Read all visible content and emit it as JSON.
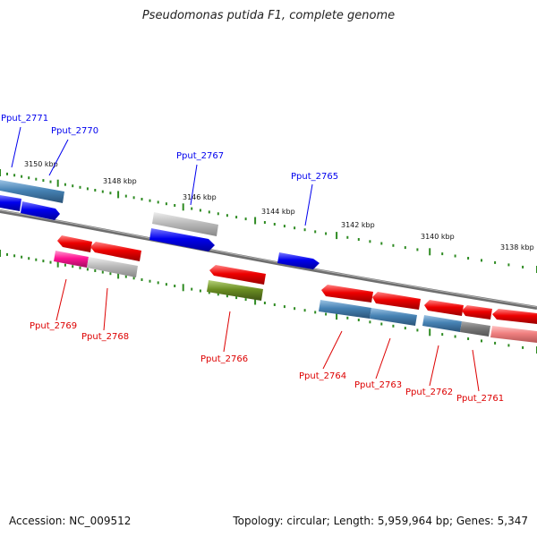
{
  "title": "Pseudomonas putida F1, complete genome",
  "footer": {
    "accession": "Accession: NC_009512",
    "summary": "Topology: circular; Length: 5,959,964 bp; Genes: 5,347"
  },
  "ruler": {
    "labels": [
      "3150 kbp",
      "3148 kbp",
      "3146 kbp",
      "3144 kbp",
      "3142 kbp",
      "3140 kbp",
      "3138 kbp"
    ]
  },
  "colors": {
    "forward": "#0000ee",
    "reverse": "#dd0000",
    "track_blue": "#4682b4",
    "gray": "#aaaaaa",
    "pink": "#ff1493",
    "olive": "#6b8e23",
    "backbone": "#808080",
    "tick": "#2e8b22"
  },
  "genes_top": [
    {
      "label": "Pput_2771",
      "color": "#0000ee"
    },
    {
      "label": "Pput_2770",
      "color": "#0000ee"
    },
    {
      "label": "Pput_2767",
      "color": "#0000ee"
    },
    {
      "label": "Pput_2765",
      "color": "#0000ee"
    }
  ],
  "genes_bottom": [
    {
      "label": "Pput_2769",
      "color": "#dd0000"
    },
    {
      "label": "Pput_2768",
      "color": "#dd0000"
    },
    {
      "label": "Pput_2766",
      "color": "#dd0000"
    },
    {
      "label": "Pput_2764",
      "color": "#dd0000"
    },
    {
      "label": "Pput_2763",
      "color": "#dd0000"
    },
    {
      "label": "Pput_2762",
      "color": "#dd0000"
    },
    {
      "label": "Pput_2761",
      "color": "#dd0000"
    }
  ]
}
